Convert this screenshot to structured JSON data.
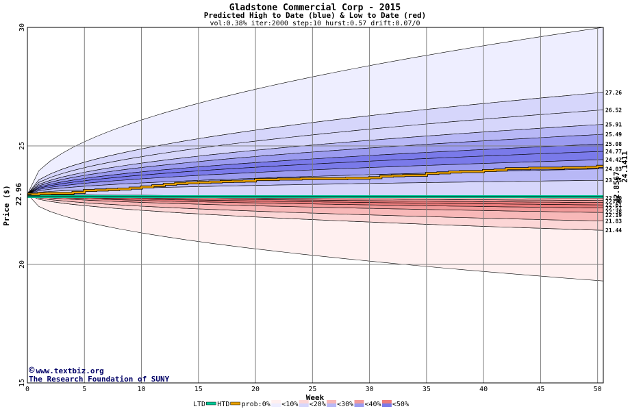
{
  "header": {
    "title": "Gladstone Commercial Corp - 2015",
    "subtitle": "Predicted High to Date (blue) &  Low to Date (red)",
    "params": "vol:0.38% iter:2000 step:10 hurst:0.57 drift:0.07/0"
  },
  "watermark": {
    "symbol": "©",
    "site": "www.textbiz.org",
    "org": "The Research Foundation of SUNY"
  },
  "legend": {
    "ltd": "LTD",
    "htd": "HTD",
    "prob": "prob:0%",
    "bins": [
      "<10%",
      "<20%",
      "<30%",
      "<40%",
      "<50%"
    ]
  },
  "colors": {
    "htd_line": "#e8a000",
    "ltd_line": "#00c896",
    "blue_bands": [
      "#eeeeff",
      "#d6d6fb",
      "#b8b8f6",
      "#9b9bf0",
      "#7a7aea"
    ],
    "red_bands": [
      "#fff0f0",
      "#fcd6d6",
      "#f8b8b8",
      "#f29a9a",
      "#ec7c7c"
    ],
    "grid": "#808080",
    "watermark": "#000066"
  },
  "chart_data": {
    "type": "area",
    "xlabel": "Week",
    "ylabel": "Price ($)",
    "xlim": [
      0,
      50.5
    ],
    "ylim": [
      15,
      30
    ],
    "x_ticks": [
      0,
      5,
      10,
      15,
      20,
      25,
      30,
      35,
      40,
      45,
      50
    ],
    "y_ticks": [
      15,
      20,
      25,
      30
    ],
    "start_price": "22.96",
    "start_value": 22.96,
    "high_to_date_end": "24.1411",
    "low_to_date_end": "22.8567",
    "ltd_value": 22.86,
    "blue_quantile_labels": [
      "27.26",
      "26.52",
      "25.91",
      "25.49",
      "25.08",
      "24.77",
      "24.42",
      "24.03",
      "23.55"
    ],
    "blue_quantile_values": [
      27.26,
      26.52,
      25.91,
      25.49,
      25.08,
      24.77,
      24.42,
      24.03,
      23.55
    ],
    "blue_outer_end": 30.0,
    "red_quantile_labels": [
      "22.80",
      "22.70",
      "22.61",
      "22.51",
      "22.38",
      "22.19",
      "21.83",
      "21.44"
    ],
    "red_quantile_values": [
      22.8,
      22.7,
      22.61,
      22.51,
      22.38,
      22.19,
      21.83,
      21.44
    ],
    "red_outer_end": 19.3,
    "htd_series": {
      "x": [
        0,
        1,
        2,
        3,
        4,
        5,
        6,
        7,
        8,
        9,
        10,
        11,
        12,
        13,
        14,
        15,
        16,
        17,
        18,
        19,
        20,
        21,
        22,
        23,
        24,
        25,
        26,
        27,
        28,
        29,
        30,
        31,
        32,
        33,
        34,
        35,
        36,
        37,
        38,
        39,
        40,
        41,
        42,
        43,
        44,
        45,
        46,
        47,
        48,
        49,
        50,
        50.5
      ],
      "y": [
        22.96,
        22.99,
        23.0,
        23.0,
        23.04,
        23.12,
        23.14,
        23.16,
        23.18,
        23.22,
        23.27,
        23.32,
        23.38,
        23.42,
        23.44,
        23.46,
        23.48,
        23.5,
        23.51,
        23.52,
        23.58,
        23.58,
        23.6,
        23.6,
        23.62,
        23.62,
        23.62,
        23.62,
        23.64,
        23.64,
        23.66,
        23.72,
        23.74,
        23.76,
        23.76,
        23.84,
        23.86,
        23.9,
        23.92,
        23.92,
        23.96,
        23.98,
        24.04,
        24.04,
        24.06,
        24.06,
        24.06,
        24.08,
        24.08,
        24.1,
        24.14,
        24.14
      ]
    }
  }
}
